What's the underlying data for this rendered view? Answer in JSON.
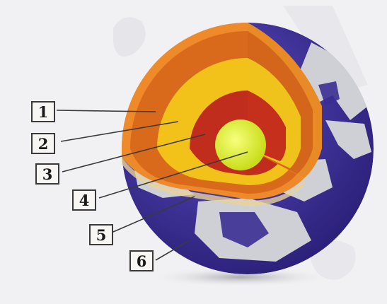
{
  "diagram": {
    "labels": [
      {
        "id": 1,
        "text": "1"
      },
      {
        "id": 2,
        "text": "2"
      },
      {
        "id": 3,
        "text": "3"
      },
      {
        "id": 4,
        "text": "4"
      },
      {
        "id": 5,
        "text": "5"
      },
      {
        "id": 6,
        "text": "6"
      }
    ]
  },
  "colors": {
    "ocean": "#3d2f97",
    "land": "#cfcfd4",
    "layer1": "#d96a1c",
    "layer2": "#f2c21a",
    "layer3": "#c02d1c",
    "inner_core": "#dff02a",
    "crust_edge": "#ef8a2a",
    "background": "#f1f0f3",
    "leader_line": "#3a3a3a"
  }
}
